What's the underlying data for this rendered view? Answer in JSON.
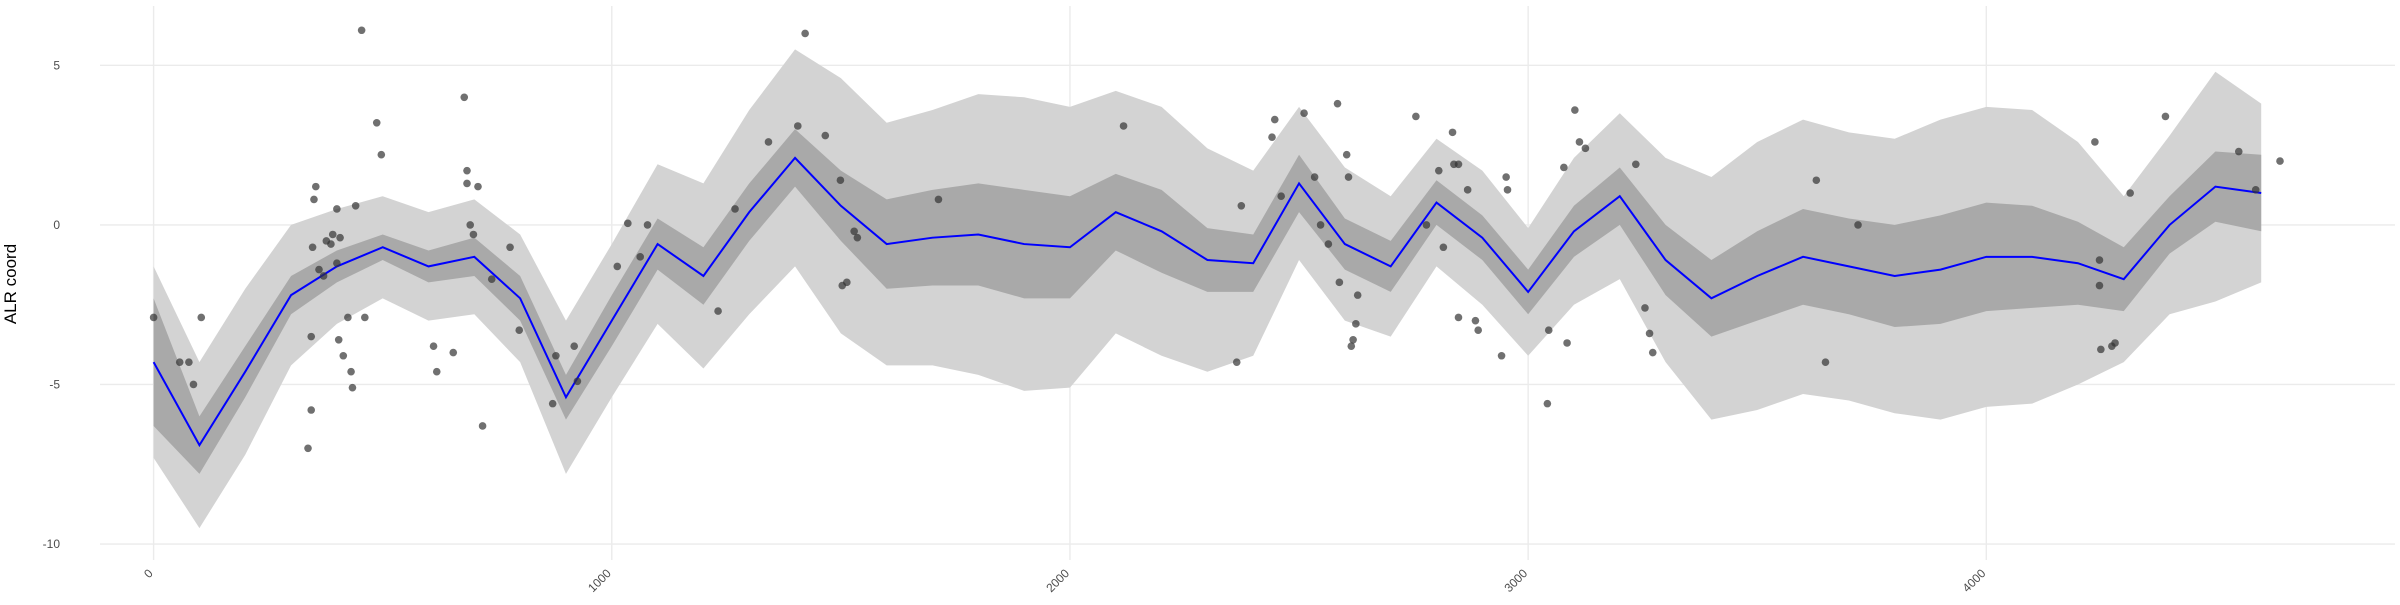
{
  "chart_data": {
    "type": "line",
    "y_label": "ALR coord",
    "xlim": [
      -117,
      4892
    ],
    "ylim": [
      -10.5,
      6.86
    ],
    "xticks": [
      0,
      1000,
      2000,
      3000,
      4000
    ],
    "yticks": [
      -10,
      -5,
      0,
      5
    ],
    "grid": true,
    "x": [
      0,
      100,
      200,
      300,
      400,
      500,
      600,
      700,
      800,
      900,
      1000,
      1100,
      1200,
      1300,
      1400,
      1500,
      1600,
      1700,
      1800,
      1900,
      2000,
      2100,
      2200,
      2300,
      2400,
      2500,
      2600,
      2700,
      2800,
      2900,
      3000,
      3100,
      3200,
      3300,
      3400,
      3500,
      3600,
      3700,
      3800,
      3900,
      4000,
      4100,
      4200,
      4300,
      4400,
      4500,
      4600
    ],
    "bands": [
      {
        "color": "#d3d3d3",
        "lower": [
          -7.3,
          -9.5,
          -7.2,
          -4.4,
          -3.1,
          -2.3,
          -3.0,
          -2.8,
          -4.3,
          -7.8,
          -5.4,
          -3.1,
          -4.5,
          -2.8,
          -1.3,
          -3.4,
          -4.4,
          -4.4,
          -4.7,
          -5.2,
          -5.1,
          -3.4,
          -4.1,
          -4.6,
          -4.1,
          -1.1,
          -3.0,
          -3.5,
          -1.3,
          -2.5,
          -4.1,
          -2.5,
          -1.7,
          -4.3,
          -6.1,
          -5.8,
          -5.3,
          -5.5,
          -5.9,
          -6.1,
          -5.7,
          -5.6,
          -5.0,
          -4.3,
          -2.8,
          -2.4,
          -1.8
        ],
        "upper": [
          -1.3,
          -4.3,
          -2.0,
          0.0,
          0.5,
          0.9,
          0.4,
          0.8,
          -0.3,
          -3.0,
          -0.6,
          1.9,
          1.3,
          3.6,
          5.5,
          4.6,
          3.2,
          3.6,
          4.1,
          4.0,
          3.7,
          4.2,
          3.7,
          2.4,
          1.7,
          3.7,
          1.8,
          0.9,
          2.7,
          1.7,
          -0.1,
          2.1,
          3.5,
          2.1,
          1.5,
          2.6,
          3.3,
          2.9,
          2.7,
          3.3,
          3.7,
          3.6,
          2.6,
          0.9,
          2.8,
          4.8,
          3.8
        ]
      },
      {
        "color": "#a9a9a9",
        "lower": [
          -6.3,
          -7.8,
          -5.4,
          -2.8,
          -1.8,
          -1.1,
          -1.8,
          -1.6,
          -3.0,
          -6.1,
          -3.8,
          -1.4,
          -2.5,
          -0.5,
          1.2,
          -0.5,
          -2.0,
          -1.9,
          -1.9,
          -2.3,
          -2.3,
          -0.8,
          -1.5,
          -2.1,
          -2.1,
          0.4,
          -1.4,
          -2.1,
          0.0,
          -1.1,
          -2.8,
          -1.0,
          0.0,
          -2.2,
          -3.5,
          -3.0,
          -2.5,
          -2.8,
          -3.2,
          -3.1,
          -2.7,
          -2.6,
          -2.5,
          -2.7,
          -0.9,
          0.1,
          -0.2
        ],
        "upper": [
          -2.3,
          -6.0,
          -3.8,
          -1.6,
          -0.8,
          -0.3,
          -0.8,
          -0.4,
          -1.6,
          -4.7,
          -2.2,
          0.2,
          -0.7,
          1.3,
          3.0,
          1.7,
          0.8,
          1.1,
          1.3,
          1.1,
          0.9,
          1.6,
          1.1,
          -0.1,
          -0.3,
          2.2,
          0.2,
          -0.5,
          1.4,
          0.3,
          -1.4,
          0.6,
          1.8,
          0.0,
          -1.1,
          -0.2,
          0.5,
          0.2,
          0.0,
          0.3,
          0.7,
          0.6,
          0.1,
          -0.7,
          0.9,
          2.3,
          2.2
        ]
      }
    ],
    "line": {
      "color": "#0000ff",
      "values": [
        -4.3,
        -6.9,
        -4.6,
        -2.2,
        -1.3,
        -0.7,
        -1.3,
        -1.0,
        -2.3,
        -5.4,
        -3.0,
        -0.6,
        -1.6,
        0.4,
        2.1,
        0.6,
        -0.6,
        -0.4,
        -0.3,
        -0.6,
        -0.7,
        0.4,
        -0.2,
        -1.1,
        -1.2,
        1.3,
        -0.6,
        -1.3,
        0.7,
        -0.4,
        -2.1,
        -0.2,
        0.9,
        -1.1,
        -2.3,
        -1.6,
        -1.0,
        -1.3,
        -1.6,
        -1.4,
        -1.0,
        -1.0,
        -1.2,
        -1.7,
        0.0,
        1.2,
        1.0
      ]
    },
    "points": {
      "color": "#333333",
      "x": [
        0,
        57,
        77,
        104,
        87,
        337,
        344,
        344,
        347,
        354,
        350,
        361,
        371,
        377,
        387,
        391,
        400,
        400,
        404,
        407,
        414,
        424,
        431,
        434,
        441,
        454,
        461,
        487,
        497,
        611,
        618,
        654,
        678,
        684,
        684,
        691,
        698,
        708,
        718,
        738,
        778,
        798,
        871,
        878,
        918,
        925,
        1012,
        1035,
        1062,
        1078,
        1232,
        1269,
        1342,
        1406,
        1422,
        1466,
        1499,
        1503,
        1513,
        1529,
        1536,
        1713,
        2117,
        2364,
        2374,
        2441,
        2447,
        2461,
        2511,
        2534,
        2547,
        2564,
        2584,
        2588,
        2604,
        2608,
        2614,
        2618,
        2624,
        2628,
        2755,
        2778,
        2805,
        2815,
        2835,
        2838,
        2848,
        2848,
        2868,
        2885,
        2891,
        2942,
        2952,
        2955,
        3042,
        3045,
        3078,
        3085,
        3102,
        3112,
        3125,
        3235,
        3255,
        3265,
        3272,
        3629,
        3649,
        3720,
        4237,
        4247,
        4247,
        4250,
        4274,
        4281,
        4314,
        4391,
        4551,
        4588,
        4641
      ],
      "y": [
        -2.9,
        -4.3,
        -4.3,
        -2.9,
        -5.0,
        -7.0,
        -5.8,
        -3.5,
        -0.7,
        1.2,
        0.8,
        -1.4,
        -1.6,
        -0.5,
        -0.6,
        -0.3,
        0.5,
        -1.2,
        -3.6,
        -0.4,
        -4.1,
        -2.9,
        -4.6,
        -5.1,
        0.6,
        6.1,
        -2.9,
        3.2,
        2.2,
        -3.8,
        -4.6,
        -4.0,
        4.0,
        1.7,
        1.3,
        0.0,
        -0.3,
        1.2,
        -6.3,
        -1.7,
        -0.7,
        -3.3,
        -5.6,
        -4.1,
        -3.8,
        -4.9,
        -1.3,
        0.05,
        -1.0,
        0.0,
        -2.7,
        0.5,
        2.6,
        3.1,
        6.0,
        2.8,
        1.4,
        -1.9,
        -1.8,
        -0.2,
        -0.4,
        0.8,
        3.1,
        -4.3,
        0.6,
        2.75,
        3.3,
        0.9,
        3.5,
        1.5,
        0.0,
        -0.6,
        3.8,
        -1.8,
        2.2,
        1.5,
        -3.8,
        -3.6,
        -3.1,
        -2.2,
        3.4,
        0.0,
        1.7,
        -0.7,
        2.9,
        1.9,
        1.9,
        -2.9,
        1.1,
        -3.0,
        -3.3,
        -4.1,
        1.5,
        1.1,
        -5.6,
        -3.3,
        1.8,
        -3.7,
        3.6,
        2.6,
        2.4,
        1.9,
        -2.6,
        -3.4,
        -4.0,
        1.4,
        -4.3,
        0.0,
        2.6,
        -1.1,
        -1.9,
        -3.9,
        -3.8,
        -3.7,
        1.0,
        3.4,
        2.3,
        1.1,
        2.0
      ]
    }
  }
}
